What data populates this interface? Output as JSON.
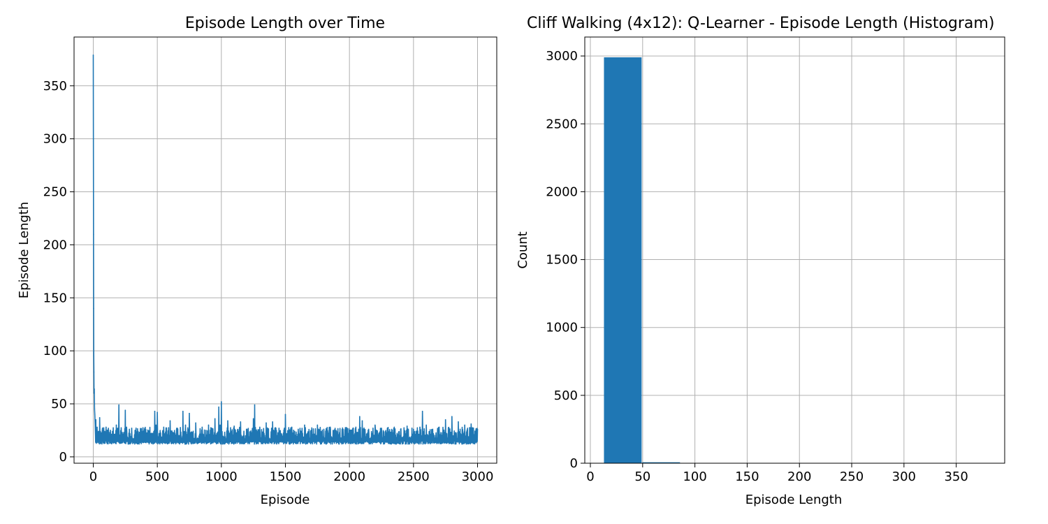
{
  "chart_data": [
    {
      "type": "line",
      "title": "Episode Length over Time",
      "xlabel": "Episode",
      "ylabel": "Episode Length",
      "xlim": [
        -150,
        3150
      ],
      "ylim": [
        -6.0,
        396.0
      ],
      "xticks": [
        0,
        500,
        1000,
        1500,
        2000,
        2500,
        3000
      ],
      "xtick_labels": [
        "0",
        "500",
        "1000",
        "1500",
        "2000",
        "2500",
        "3000"
      ],
      "yticks": [
        0,
        50,
        100,
        150,
        200,
        250,
        300,
        350
      ],
      "ytick_labels": [
        "0",
        "50",
        "100",
        "150",
        "200",
        "250",
        "300",
        "350"
      ],
      "grid": true,
      "color": "#1f77b4",
      "series": [
        {
          "x": [
            0,
            1,
            2,
            3,
            4,
            5,
            6,
            8,
            10,
            12,
            15,
            20,
            25,
            30,
            40,
            50,
            60,
            70,
            80,
            100,
            120,
            150,
            180,
            200,
            220,
            250,
            260,
            300,
            350,
            400,
            450,
            480,
            490,
            500,
            550,
            600,
            650,
            700,
            720,
            750,
            800,
            850,
            900,
            950,
            980,
            990,
            1000,
            1050,
            1100,
            1150,
            1200,
            1250,
            1260,
            1300,
            1350,
            1400,
            1450,
            1490,
            1500,
            1550,
            1600,
            1650,
            1700,
            1750,
            1800,
            1850,
            1900,
            1950,
            2000,
            2050,
            2080,
            2100,
            2150,
            2200,
            2250,
            2300,
            2350,
            2400,
            2450,
            2500,
            2550,
            2570,
            2600,
            2650,
            2700,
            2750,
            2800,
            2850,
            2900,
            2950,
            3000
          ],
          "y": [
            379,
            300,
            210,
            140,
            95,
            80,
            60,
            64,
            45,
            40,
            30,
            35,
            22,
            28,
            24,
            37,
            20,
            25,
            22,
            28,
            23,
            24,
            30,
            49,
            22,
            44,
            28,
            27,
            24,
            26,
            22,
            43,
            30,
            42,
            28,
            34,
            26,
            43,
            30,
            41,
            32,
            28,
            30,
            36,
            47,
            30,
            52,
            34,
            29,
            33,
            26,
            36,
            49,
            28,
            32,
            33,
            27,
            25,
            40,
            28,
            26,
            30,
            25,
            30,
            26,
            28,
            24,
            26,
            25,
            28,
            38,
            34,
            26,
            30,
            27,
            26,
            28,
            26,
            29,
            26,
            28,
            43,
            30,
            26,
            28,
            35,
            38,
            33,
            30,
            31,
            26
          ]
        }
      ],
      "noise_floor": 12
    },
    {
      "type": "histogram",
      "title": "Cliff Walking (4x12): Q-Learner - Episode Length (Histogram)",
      "xlabel": "Episode Length",
      "ylabel": "Count",
      "xlim": [
        -5.35,
        396.35
      ],
      "ylim": [
        0,
        3139.5
      ],
      "xticks": [
        0,
        50,
        100,
        150,
        200,
        250,
        300,
        350
      ],
      "xtick_labels": [
        "0",
        "50",
        "100",
        "150",
        "200",
        "250",
        "300",
        "350"
      ],
      "yticks": [
        0,
        500,
        1000,
        1500,
        2000,
        2500,
        3000
      ],
      "ytick_labels": [
        "0",
        "500",
        "1000",
        "1500",
        "2000",
        "2500",
        "3000"
      ],
      "grid": true,
      "color": "#1f77b4",
      "bins": [
        13,
        49.7,
        86.4,
        123.1,
        159.8,
        196.5,
        233.2,
        269.9,
        306.6,
        343.3,
        380
      ],
      "counts": [
        2990,
        7,
        1,
        0,
        0,
        0,
        0,
        1,
        0,
        1
      ]
    }
  ]
}
